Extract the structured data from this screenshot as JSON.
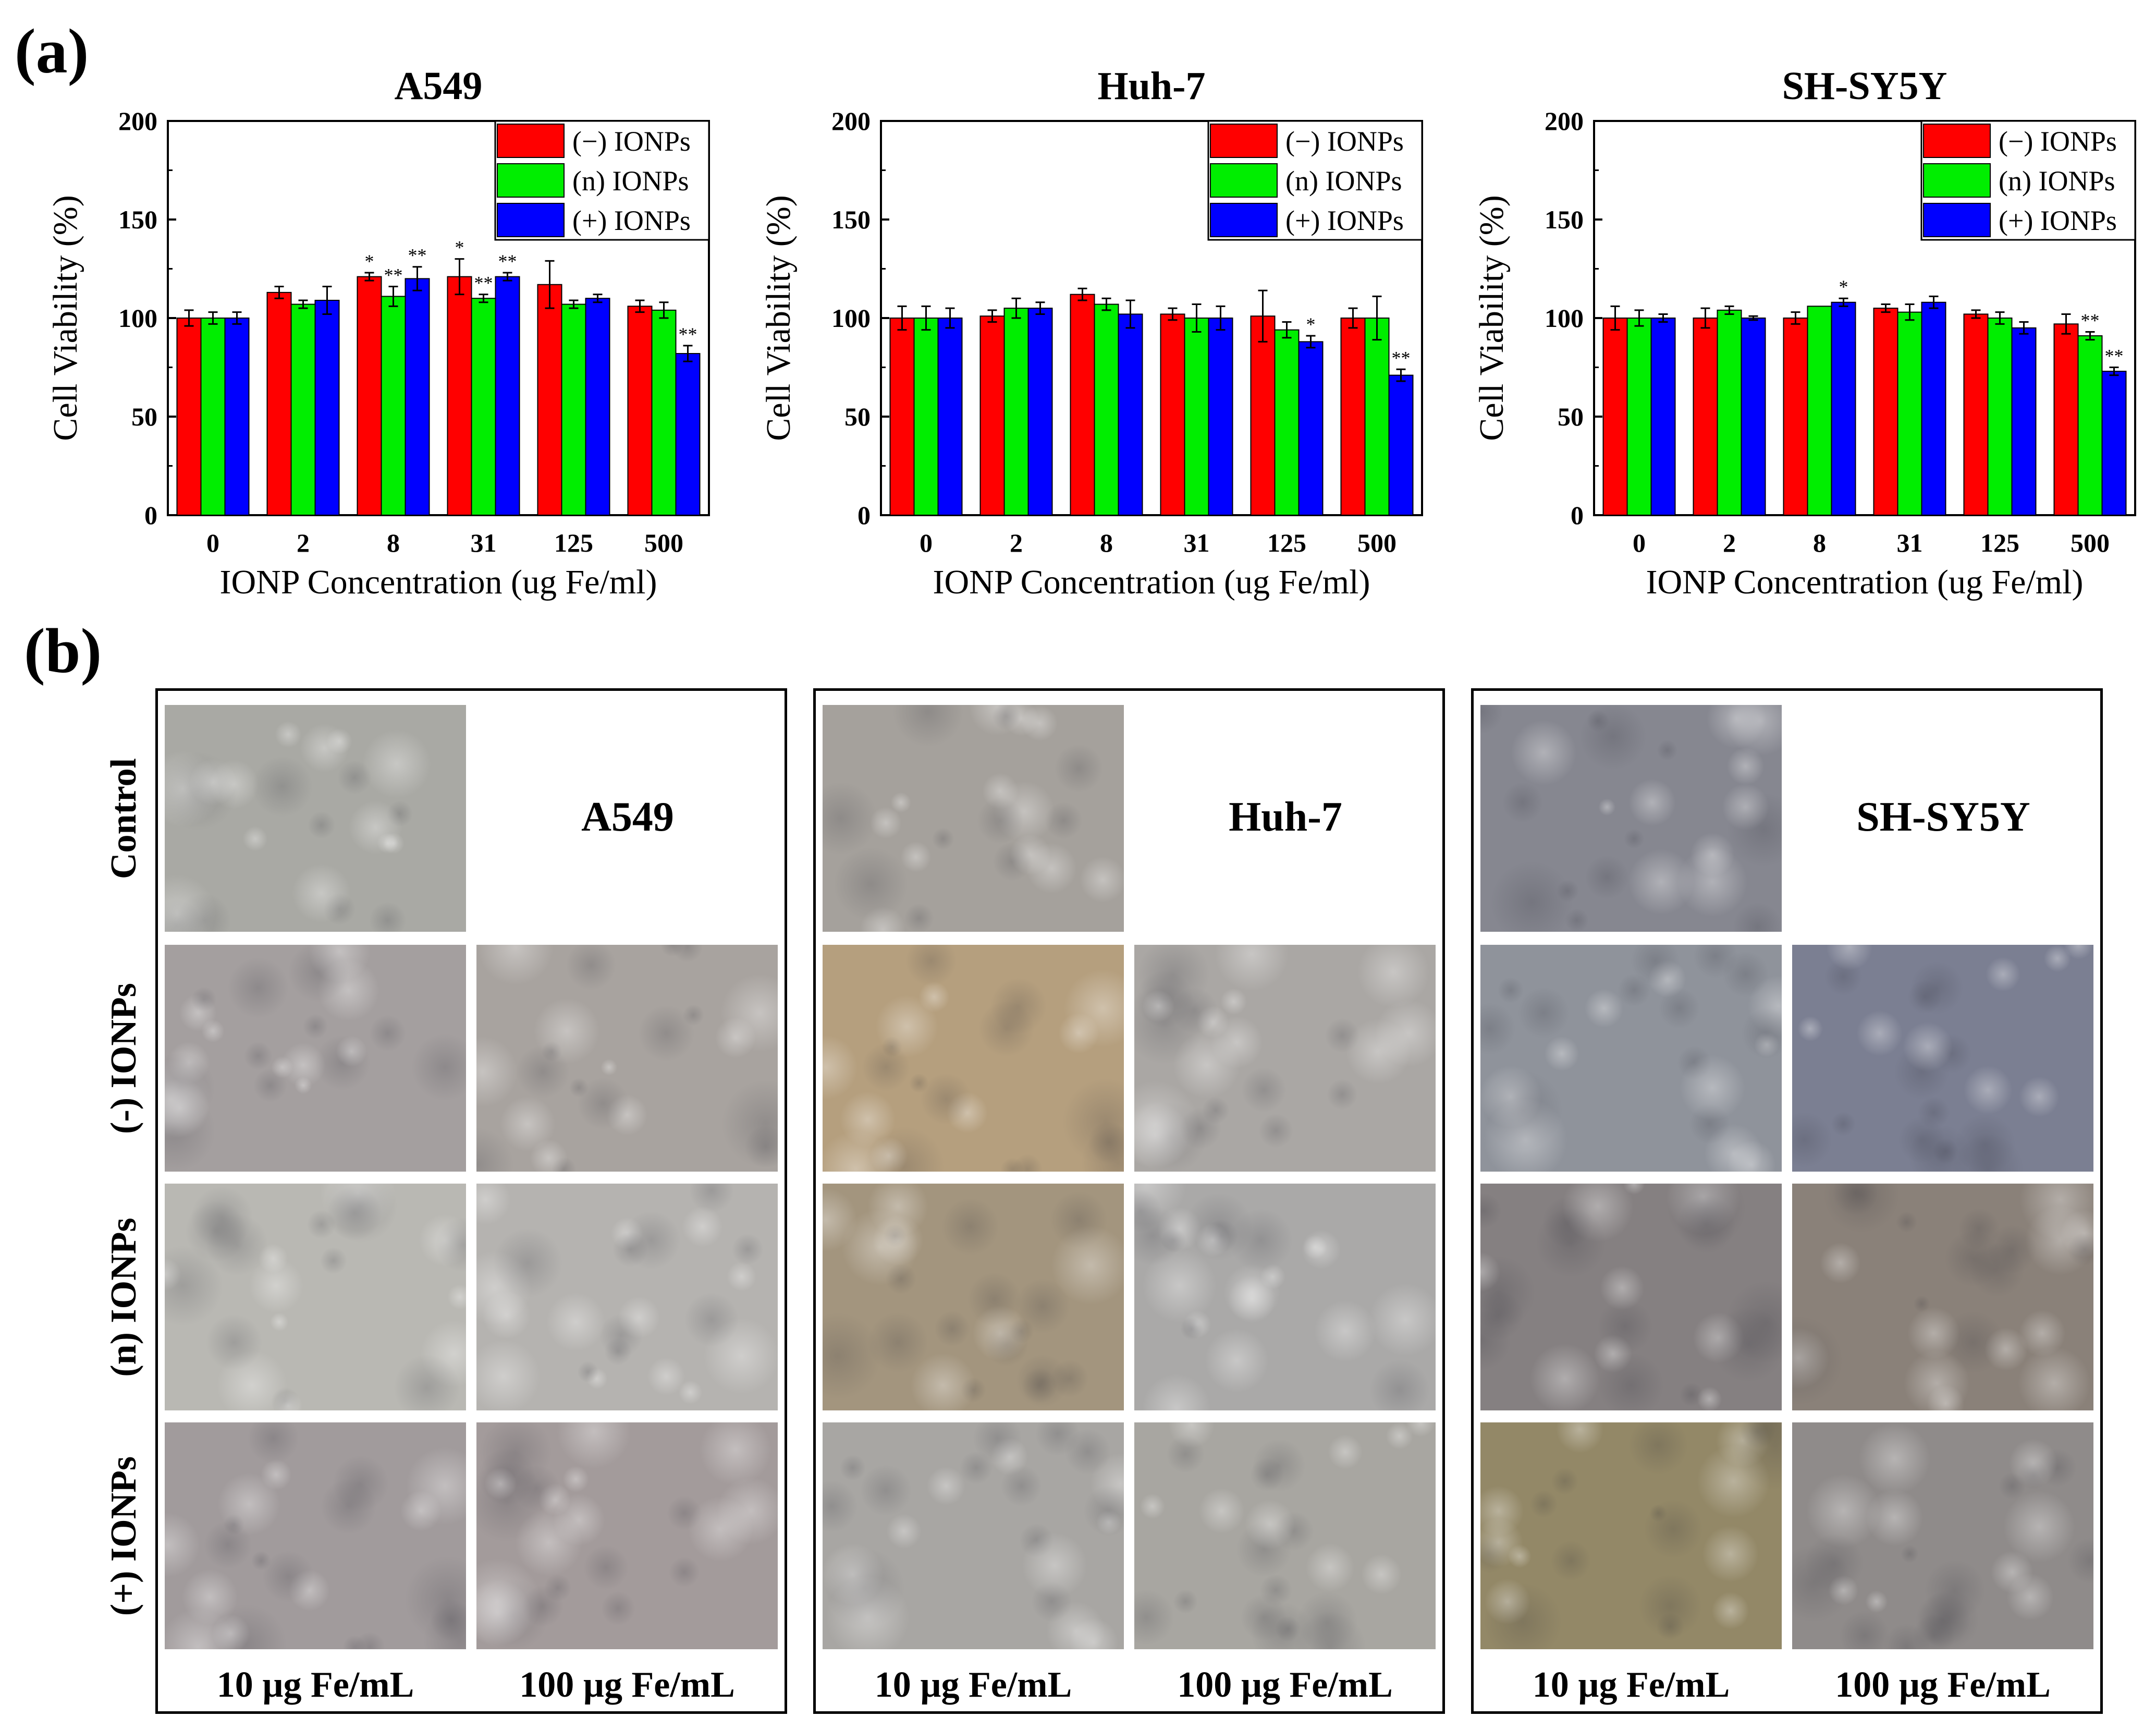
{
  "panel_labels": {
    "a": "(a)",
    "b": "(b)"
  },
  "colors": {
    "neg": "#ff0000",
    "neutral": "#00ee00",
    "pos": "#0000ff"
  },
  "chart_data": [
    {
      "type": "bar",
      "title": "A549",
      "xlabel": "IONP Concentration (ug Fe/ml)",
      "ylabel": "Cell Viability (%)",
      "ylim": [
        0,
        200
      ],
      "yticks": [
        0,
        50,
        100,
        150,
        200
      ],
      "categories": [
        "0",
        "2",
        "8",
        "31",
        "125",
        "500"
      ],
      "legend_position": "top-right",
      "series": [
        {
          "name": "(−) IONPs",
          "color": "#ff0000",
          "values": [
            100,
            113,
            121,
            121,
            117,
            106
          ],
          "errors": [
            4,
            3,
            2,
            9,
            12,
            3
          ],
          "stars": [
            "",
            "",
            "*",
            "*",
            "",
            ""
          ]
        },
        {
          "name": "(n) IONPs",
          "color": "#00ee00",
          "values": [
            100,
            107,
            111,
            110,
            107,
            104
          ],
          "errors": [
            3,
            2,
            5,
            2,
            2,
            4
          ],
          "stars": [
            "",
            "",
            "**",
            "**",
            "",
            ""
          ]
        },
        {
          "name": "(+) IONPs",
          "color": "#0000ff",
          "values": [
            100,
            109,
            120,
            121,
            110,
            82
          ],
          "errors": [
            3,
            7,
            6,
            2,
            2,
            4
          ],
          "stars": [
            "",
            "",
            "**",
            "**",
            "",
            "**"
          ]
        }
      ]
    },
    {
      "type": "bar",
      "title": "Huh-7",
      "xlabel": "IONP Concentration (ug Fe/ml)",
      "ylabel": "Cell Viability (%)",
      "ylim": [
        0,
        200
      ],
      "yticks": [
        0,
        50,
        100,
        150,
        200
      ],
      "categories": [
        "0",
        "2",
        "8",
        "31",
        "125",
        "500"
      ],
      "legend_position": "top-right",
      "series": [
        {
          "name": "(−) IONPs",
          "color": "#ff0000",
          "values": [
            100,
            101,
            112,
            102,
            101,
            100
          ],
          "errors": [
            6,
            3,
            3,
            3,
            13,
            5
          ],
          "stars": [
            "",
            "",
            "",
            "",
            "",
            ""
          ]
        },
        {
          "name": "(n) IONPs",
          "color": "#00ee00",
          "values": [
            100,
            105,
            107,
            100,
            94,
            100
          ],
          "errors": [
            6,
            5,
            3,
            7,
            4,
            11
          ],
          "stars": [
            "",
            "",
            "",
            "",
            "",
            ""
          ]
        },
        {
          "name": "(+) IONPs",
          "color": "#0000ff",
          "values": [
            100,
            105,
            102,
            100,
            88,
            71
          ],
          "errors": [
            5,
            3,
            7,
            6,
            3,
            3
          ],
          "stars": [
            "",
            "",
            "",
            "",
            "*",
            "**"
          ]
        }
      ]
    },
    {
      "type": "bar",
      "title": "SH-SY5Y",
      "xlabel": "IONP Concentration (ug Fe/ml)",
      "ylabel": "Cell Viability (%)",
      "ylim": [
        0,
        200
      ],
      "yticks": [
        0,
        50,
        100,
        150,
        200
      ],
      "categories": [
        "0",
        "2",
        "8",
        "31",
        "125",
        "500"
      ],
      "legend_position": "top-right",
      "series": [
        {
          "name": "(−) IONPs",
          "color": "#ff0000",
          "values": [
            100,
            100,
            100,
            105,
            102,
            97
          ],
          "errors": [
            6,
            5,
            3,
            2,
            2,
            5
          ],
          "stars": [
            "",
            "",
            "",
            "",
            "",
            ""
          ]
        },
        {
          "name": "(n) IONPs",
          "color": "#00ee00",
          "values": [
            100,
            104,
            106,
            103,
            100,
            91
          ],
          "errors": [
            4,
            2,
            0,
            4,
            3,
            2
          ],
          "stars": [
            "",
            "",
            "",
            "",
            "",
            "**"
          ]
        },
        {
          "name": "(+) IONPs",
          "color": "#0000ff",
          "values": [
            100,
            100,
            108,
            108,
            95,
            73
          ],
          "errors": [
            2,
            1,
            2,
            3,
            3,
            2
          ],
          "stars": [
            "",
            "",
            "*",
            "",
            "",
            "**"
          ]
        }
      ]
    }
  ],
  "micrographs": {
    "cell_lines": [
      "A549",
      "Huh-7",
      "SH-SY5Y"
    ],
    "row_labels": [
      "Control",
      "(-) IONPs",
      "(n) IONPs",
      "(+) IONPs"
    ],
    "column_labels": [
      "10 µg Fe/mL",
      "100 µg Fe/mL"
    ],
    "tints": [
      [
        "#a9a9a4",
        "#a49f9f",
        "#a8a39f",
        "#b9b8b3",
        "#b5b3b0",
        "#a19b9c",
        "#a39b9b"
      ],
      [
        "#a5a19c",
        "#b59f7e",
        "#aaa7a4",
        "#a3957e",
        "#aaa9a8",
        "#a8a6a3",
        "#a8a6a1"
      ],
      [
        "#868790",
        "#8f939b",
        "#7b7f92",
        "#858081",
        "#8a8179",
        "#938867",
        "#8f8b8a"
      ]
    ]
  }
}
